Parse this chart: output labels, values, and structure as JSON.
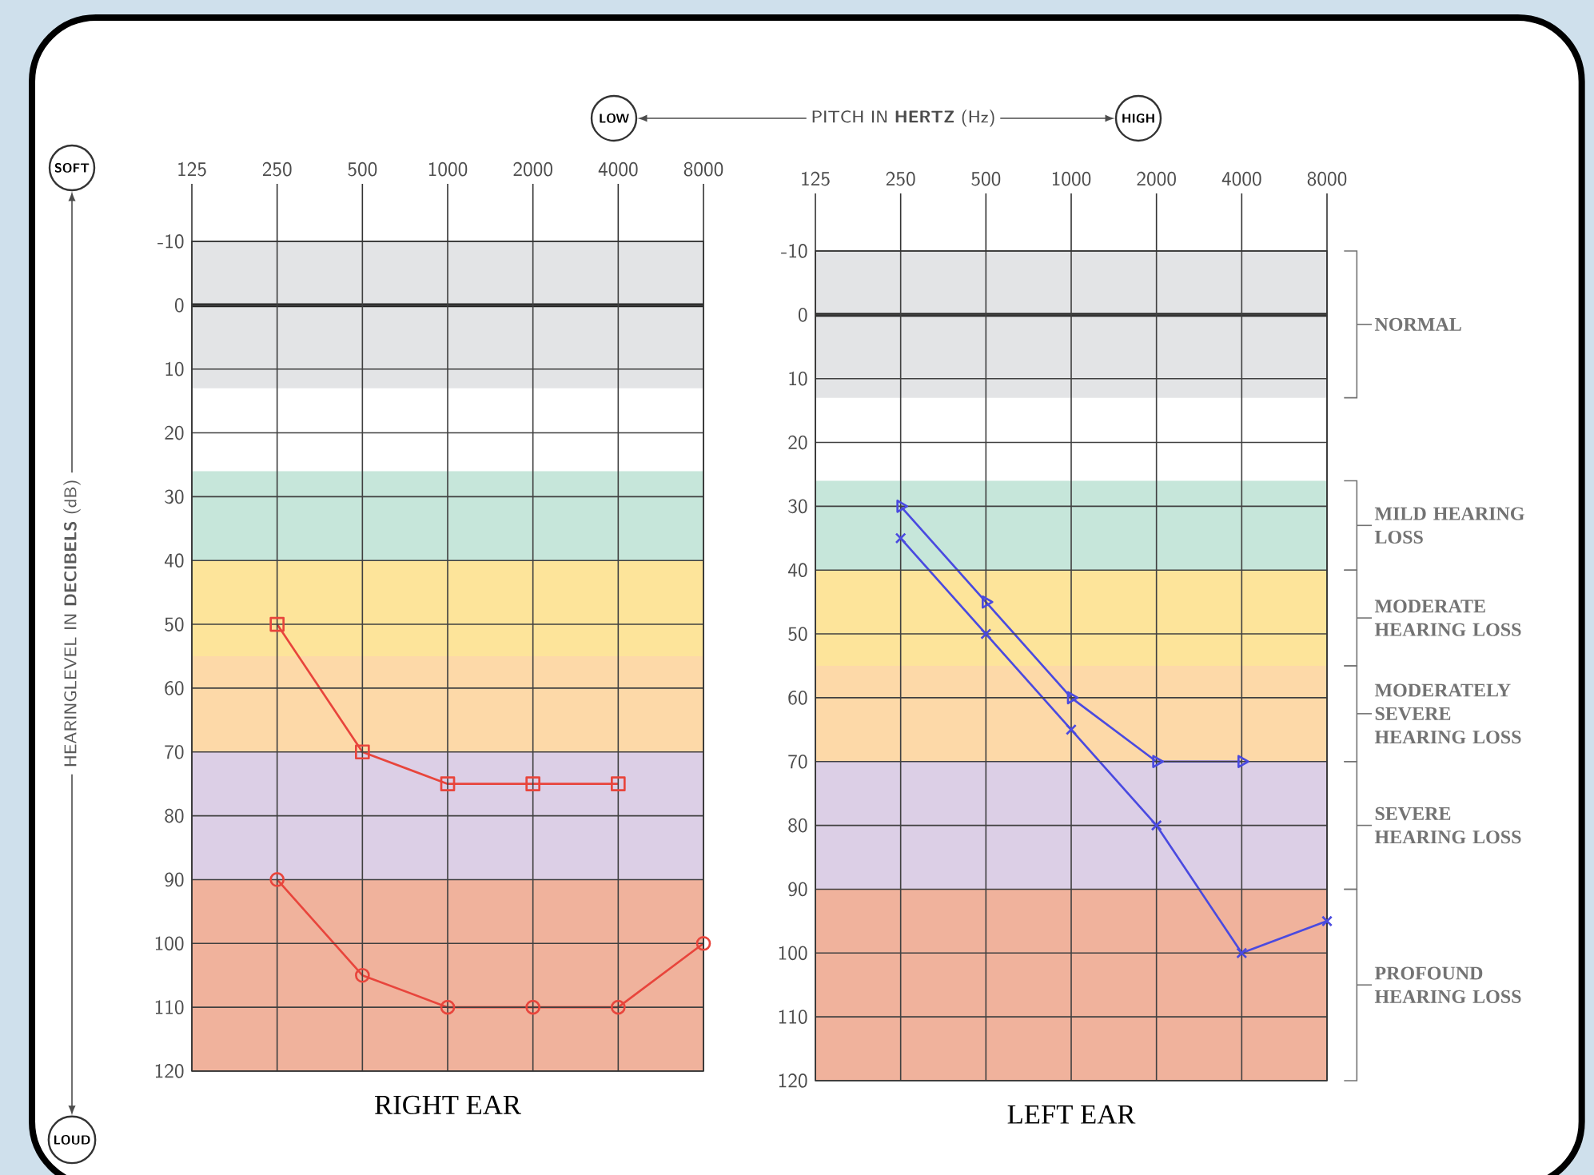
{
  "chart_data": [
    {
      "type": "line",
      "title": "RIGHT EAR",
      "ylabel": "HEARINGLEVEL IN **DECIBELS** (dB)",
      "annotations": [
        "LOW",
        "PITCH IN **HERTZ** (Hz)",
        "HIGH",
        "SOFT",
        "LOUD"
      ],
      "categories": [
        "125",
        "250",
        "500",
        "1000",
        "2000",
        "4000",
        "8000"
      ],
      "ylim": [
        120,
        -10
      ],
      "yticks": [
        -10,
        0,
        10,
        20,
        30,
        40,
        50,
        60,
        70,
        80,
        90,
        100,
        110,
        120
      ],
      "grid": true,
      "line_style": "solid",
      "series": [
        {
          "color": "#e8453c",
          "marker": "square",
          "values": [
            null,
            50,
            70,
            75,
            75,
            75,
            null
          ]
        },
        {
          "color": "#e8453c",
          "marker": "circle",
          "values": [
            null,
            90,
            105,
            110,
            110,
            110,
            100
          ]
        }
      ],
      "bands": [
        {
          "axis": "y",
          "from": -10,
          "to": 13,
          "color": "#e3e4e6"
        },
        {
          "axis": "y",
          "from": 26,
          "to": 40,
          "color": "#c6e6da"
        },
        {
          "axis": "y",
          "from": 40,
          "to": 55,
          "color": "#fde49a"
        },
        {
          "axis": "y",
          "from": 55,
          "to": 70,
          "color": "#fdd9a8"
        },
        {
          "axis": "y",
          "from": 70,
          "to": 90,
          "color": "#dccfe6"
        },
        {
          "axis": "y",
          "from": 90,
          "to": 120,
          "color": "#f0b29c"
        }
      ],
      "ref_lines": [
        {
          "axis": "y",
          "value": 0,
          "color": "#222222"
        }
      ]
    },
    {
      "type": "line",
      "title": "LEFT EAR",
      "categories": [
        "125",
        "250",
        "500",
        "1000",
        "2000",
        "4000",
        "8000"
      ],
      "ylim": [
        120,
        -10
      ],
      "yticks": [
        -10,
        0,
        10,
        20,
        30,
        40,
        50,
        60,
        70,
        80,
        90,
        100,
        110,
        120
      ],
      "grid": true,
      "line_style": "solid",
      "series": [
        {
          "color": "#4a4ae0",
          "marker": "triangle",
          "values": [
            null,
            30,
            45,
            60,
            70,
            70,
            null
          ]
        },
        {
          "color": "#4a4ae0",
          "marker": "cross",
          "values": [
            null,
            35,
            50,
            65,
            80,
            100,
            95
          ]
        }
      ],
      "bands": [
        {
          "axis": "y",
          "from": -10,
          "to": 13,
          "color": "#e3e4e6",
          "label": "NORMAL"
        },
        {
          "axis": "y",
          "from": 26,
          "to": 40,
          "color": "#c6e6da",
          "label": "MILD HEARING LOSS"
        },
        {
          "axis": "y",
          "from": 40,
          "to": 55,
          "color": "#fde49a",
          "label": "MODERATE HEARING LOSS"
        },
        {
          "axis": "y",
          "from": 55,
          "to": 70,
          "color": "#fdd9a8",
          "label": "MODERATELY SEVERE HEARING LOSS"
        },
        {
          "axis": "y",
          "from": 70,
          "to": 90,
          "color": "#dccfe6",
          "label": "SEVERE HEARING LOSS"
        },
        {
          "axis": "y",
          "from": 90,
          "to": 120,
          "color": "#f0b29c",
          "label": "PROFOUND HEARING LOSS"
        }
      ],
      "ref_lines": [
        {
          "axis": "y",
          "value": 0,
          "color": "#222222"
        }
      ]
    }
  ]
}
